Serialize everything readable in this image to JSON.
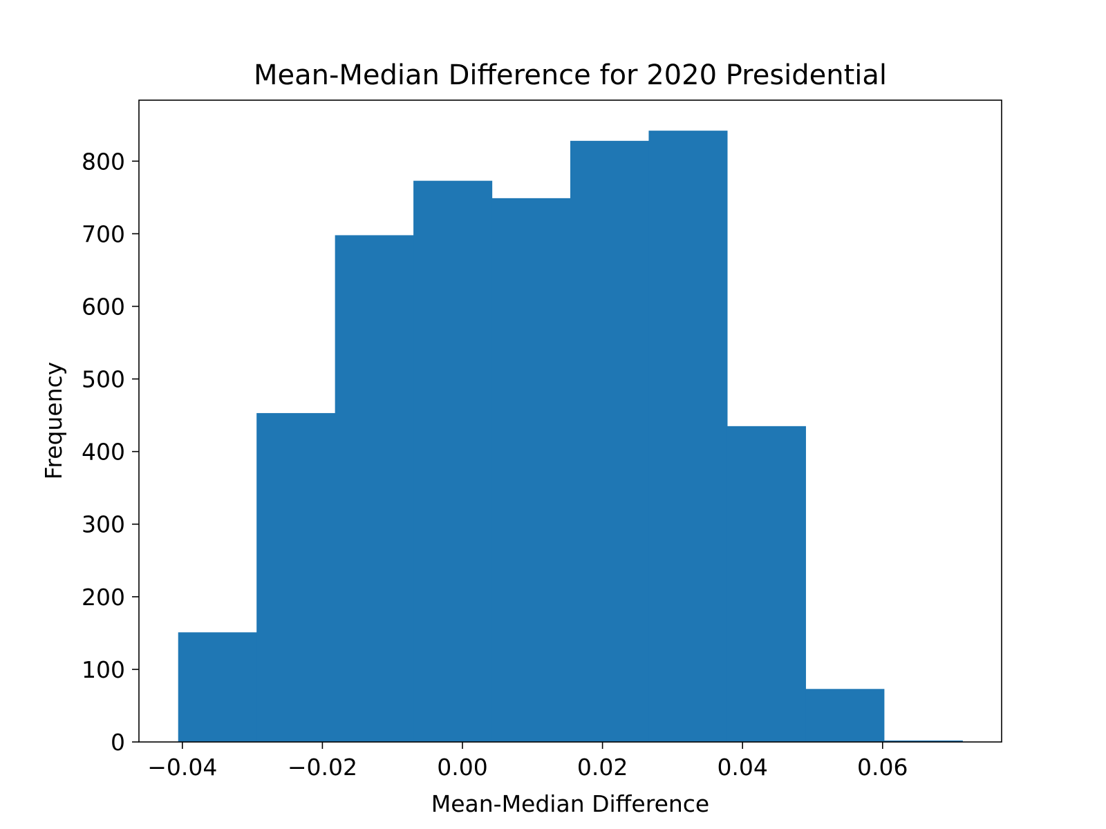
{
  "chart_data": {
    "type": "bar",
    "title": "Mean-Median Difference for 2020 Presidential",
    "xlabel": "Mean-Median Difference",
    "ylabel": "Frequency",
    "bin_edges": [
      -0.0406,
      -0.0294,
      -0.0182,
      -0.007,
      0.0042,
      0.0154,
      0.0266,
      0.0378,
      0.049,
      0.0602,
      0.0714
    ],
    "values": [
      151,
      453,
      698,
      773,
      749,
      828,
      842,
      435,
      73,
      2
    ],
    "xlim": [
      -0.0462,
      0.077
    ],
    "ylim": [
      0,
      884
    ],
    "xticks": [
      -0.04,
      -0.02,
      0.0,
      0.02,
      0.04,
      0.06
    ],
    "xtick_labels": [
      "−0.04",
      "−0.02",
      "0.00",
      "0.02",
      "0.04",
      "0.06"
    ],
    "yticks": [
      0,
      100,
      200,
      300,
      400,
      500,
      600,
      700,
      800
    ],
    "ytick_labels": [
      "0",
      "100",
      "200",
      "300",
      "400",
      "500",
      "600",
      "700",
      "800"
    ],
    "bar_color": "#1f77b4",
    "grid": false,
    "legend": "none"
  }
}
